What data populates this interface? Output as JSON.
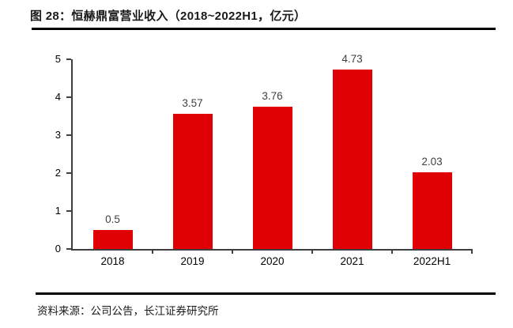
{
  "figure": {
    "title": "图 28：恒赫鼎富营业收入（2018~2022H1，亿元）",
    "source": "资料来源：公司公告，长江证券研究所"
  },
  "chart_data": {
    "type": "bar",
    "title": "恒赫鼎富营业收入（2018~2022H1，亿元）",
    "categories": [
      "2018",
      "2019",
      "2020",
      "2021",
      "2022H1"
    ],
    "values": [
      0.5,
      3.57,
      3.76,
      4.73,
      2.03
    ],
    "value_labels": [
      "0.5",
      "3.57",
      "3.76",
      "4.73",
      "2.03"
    ],
    "xlabel": "",
    "ylabel": "",
    "ylim": [
      0,
      5
    ],
    "yticks": [
      0,
      1,
      2,
      3,
      4,
      5
    ],
    "grid": false,
    "legend": "none",
    "bar_color": "#df0104"
  },
  "colors": {
    "bar": "#df0104",
    "axis": "#3f3f3f",
    "rule": "#000000",
    "value_label": "#404040",
    "tick_label": "#000000",
    "background": "#ffffff"
  }
}
